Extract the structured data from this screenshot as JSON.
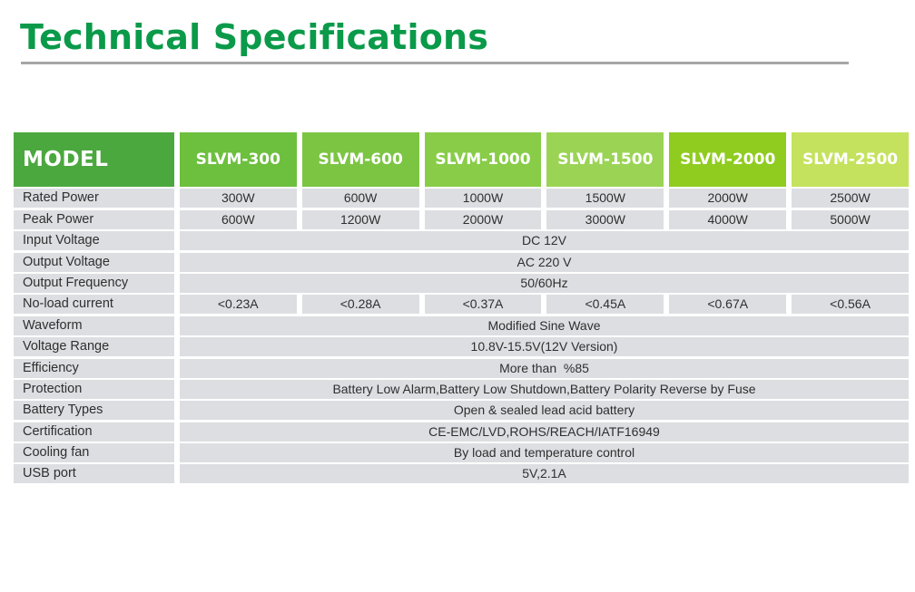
{
  "title": "Technical Specifications",
  "colors": {
    "title": "#0a9a49",
    "model_header": "#4ba83e",
    "model_headers": [
      "#6dbf3e",
      "#7cc543",
      "#88cc48",
      "#9bd455",
      "#8fcc1f",
      "#c4e25d"
    ],
    "row_bg": "#dcdee2"
  },
  "table": {
    "header_label": "MODEL",
    "models": [
      "SLVM-300",
      "SLVM-600",
      "SLVM-1000",
      "SLVM-1500",
      "SLVM-2000",
      "SLVM-2500"
    ],
    "rows": [
      {
        "label": "Rated Power",
        "values": [
          "300W",
          "600W",
          "1000W",
          "1500W",
          "2000W",
          "2500W"
        ]
      },
      {
        "label": "Peak Power",
        "values": [
          "600W",
          "1200W",
          "2000W",
          "3000W",
          "4000W",
          "5000W"
        ]
      },
      {
        "label": "Input Voltage",
        "value": "DC 12V"
      },
      {
        "label": "Output Voltage",
        "value": "AC 220 V"
      },
      {
        "label": "Output Frequency",
        "value": "50/60Hz"
      },
      {
        "label": "No-load current",
        "values": [
          "<0.23A",
          "<0.28A",
          "<0.37A",
          "<0.45A",
          "<0.67A",
          "<0.56A"
        ]
      },
      {
        "label": "Waveform",
        "value": "Modified Sine Wave"
      },
      {
        "label": "Voltage Range",
        "value": "10.8V-15.5V(12V Version)"
      },
      {
        "label": "Efficiency",
        "value": "More than  %85"
      },
      {
        "label": "Protection",
        "value": "Battery Low Alarm,Battery Low Shutdown,Battery Polarity Reverse by Fuse"
      },
      {
        "label": "Battery Types",
        "value": "Open & sealed lead acid battery"
      },
      {
        "label": "Certification",
        "value": "CE-EMC/LVD,ROHS/REACH/IATF16949"
      },
      {
        "label": "Cooling fan",
        "value": "By load and temperature control"
      },
      {
        "label": "USB port",
        "value": "5V,2.1A"
      }
    ]
  }
}
